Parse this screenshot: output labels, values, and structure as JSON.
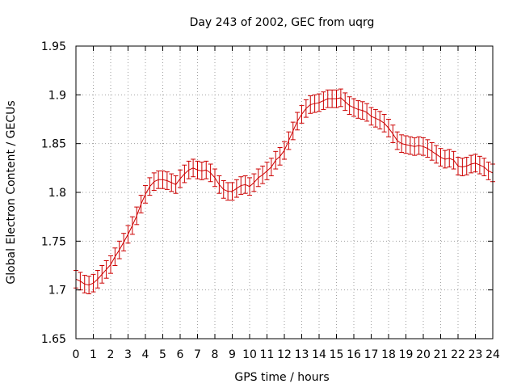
{
  "chart_data": {
    "type": "line",
    "title": "Day 243 of 2002, GEC from uqrg",
    "xlabel": "GPS time / hours",
    "ylabel": "Global Electron Content / GECUs",
    "xlim": [
      0,
      24
    ],
    "ylim": [
      1.65,
      1.95
    ],
    "x_ticks": [
      "0",
      "1",
      "2",
      "3",
      "4",
      "5",
      "6",
      "7",
      "8",
      "9",
      "10",
      "11",
      "12",
      "13",
      "14",
      "15",
      "16",
      "17",
      "18",
      "19",
      "20",
      "21",
      "22",
      "23",
      "24"
    ],
    "y_ticks": [
      "1.65",
      "1.7",
      "1.75",
      "1.8",
      "1.85",
      "1.9",
      "1.95"
    ],
    "grid": true,
    "error_bars": true,
    "error": 0.009,
    "color": "#cc0000",
    "series": [
      {
        "x": [
          0,
          0.25,
          0.5,
          0.75,
          1,
          1.25,
          1.5,
          1.75,
          2,
          2.25,
          2.5,
          2.75,
          3,
          3.25,
          3.5,
          3.75,
          4,
          4.25,
          4.5,
          4.75,
          5,
          5.25,
          5.5,
          5.75,
          6,
          6.25,
          6.5,
          6.75,
          7,
          7.25,
          7.5,
          7.75,
          8,
          8.25,
          8.5,
          8.75,
          9,
          9.25,
          9.5,
          9.75,
          10,
          10.25,
          10.5,
          10.75,
          11,
          11.25,
          11.5,
          11.75,
          12,
          12.25,
          12.5,
          12.75,
          13,
          13.25,
          13.5,
          13.75,
          14,
          14.25,
          14.5,
          14.75,
          15,
          15.25,
          15.5,
          15.75,
          16,
          16.25,
          16.5,
          16.75,
          17,
          17.25,
          17.5,
          17.75,
          18,
          18.25,
          18.5,
          18.75,
          19,
          19.25,
          19.5,
          19.75,
          20,
          20.25,
          20.5,
          20.75,
          21,
          21.25,
          21.5,
          21.75,
          22,
          22.25,
          22.5,
          22.75,
          23,
          23.25,
          23.5,
          23.75,
          24
        ],
        "values": [
          1.711,
          1.709,
          1.706,
          1.705,
          1.707,
          1.711,
          1.716,
          1.721,
          1.726,
          1.734,
          1.741,
          1.749,
          1.757,
          1.766,
          1.776,
          1.788,
          1.798,
          1.806,
          1.811,
          1.813,
          1.813,
          1.812,
          1.81,
          1.808,
          1.814,
          1.819,
          1.823,
          1.825,
          1.823,
          1.822,
          1.823,
          1.82,
          1.815,
          1.808,
          1.803,
          1.801,
          1.801,
          1.804,
          1.807,
          1.808,
          1.806,
          1.81,
          1.815,
          1.818,
          1.822,
          1.826,
          1.833,
          1.837,
          1.843,
          1.853,
          1.863,
          1.873,
          1.88,
          1.886,
          1.89,
          1.891,
          1.892,
          1.894,
          1.896,
          1.896,
          1.896,
          1.897,
          1.893,
          1.889,
          1.887,
          1.885,
          1.884,
          1.882,
          1.878,
          1.876,
          1.874,
          1.871,
          1.866,
          1.86,
          1.853,
          1.85,
          1.849,
          1.848,
          1.847,
          1.848,
          1.847,
          1.845,
          1.842,
          1.839,
          1.836,
          1.834,
          1.835,
          1.833,
          1.827,
          1.826,
          1.827,
          1.829,
          1.83,
          1.828,
          1.826,
          1.822,
          1.82
        ]
      }
    ]
  }
}
